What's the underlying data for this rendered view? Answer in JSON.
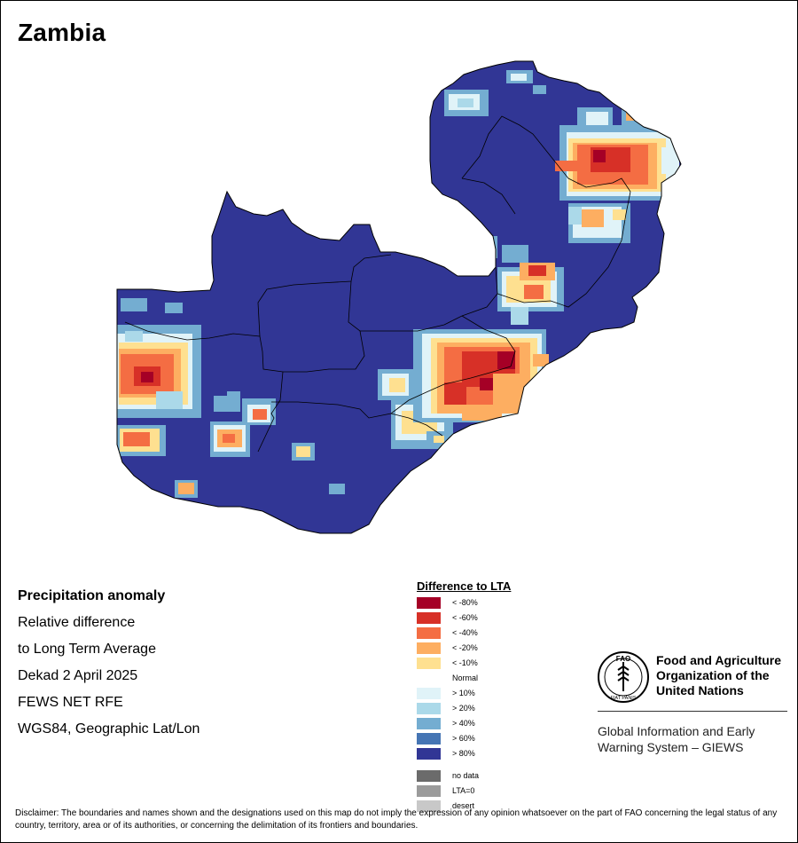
{
  "map": {
    "title": "Zambia"
  },
  "info": {
    "lines": [
      "Precipitation anomaly",
      "Relative difference",
      "to Long Term Average",
      "Dekad 2 April 2025",
      "FEWS NET RFE",
      "WGS84, Geographic Lat/Lon"
    ]
  },
  "legend": {
    "title": "Difference to LTA",
    "items": [
      {
        "label": "< -80%",
        "color": "#a50026"
      },
      {
        "label": "< -60%",
        "color": "#d73027"
      },
      {
        "label": "< -40%",
        "color": "#f46d43"
      },
      {
        "label": "< -20%",
        "color": "#fdae61"
      },
      {
        "label": "< -10%",
        "color": "#fee090"
      },
      {
        "label": "Normal",
        "color": "#ffffff"
      },
      {
        "label": "> 10%",
        "color": "#e0f3f8"
      },
      {
        "label": "> 20%",
        "color": "#abd9e9"
      },
      {
        "label": "> 40%",
        "color": "#74add1"
      },
      {
        "label": "> 60%",
        "color": "#4575b4"
      },
      {
        "label": "> 80%",
        "color": "#313695"
      }
    ],
    "extra_items": [
      {
        "label": "no data",
        "color": "#6b6b6b"
      },
      {
        "label": "LTA=0",
        "color": "#9b9b9b"
      },
      {
        "label": "desert",
        "color": "#c8c8c8"
      }
    ]
  },
  "branding": {
    "fao_name": "Food and Agriculture Organization of the United Nations",
    "logo_text_top": "FAO",
    "logo_text_bottom": "FIAT PANIS",
    "giews_name": "Global Information and Early Warning System – GIEWS"
  },
  "disclaimer": "Disclaimer: The boundaries and names shown and the designations used on this map do not imply the expression of any opinion whatsoever on the part of FAO concerning the legal status of any country, territory, area or of its authorities, or concerning the delimitation of its frontiers and boundaries."
}
